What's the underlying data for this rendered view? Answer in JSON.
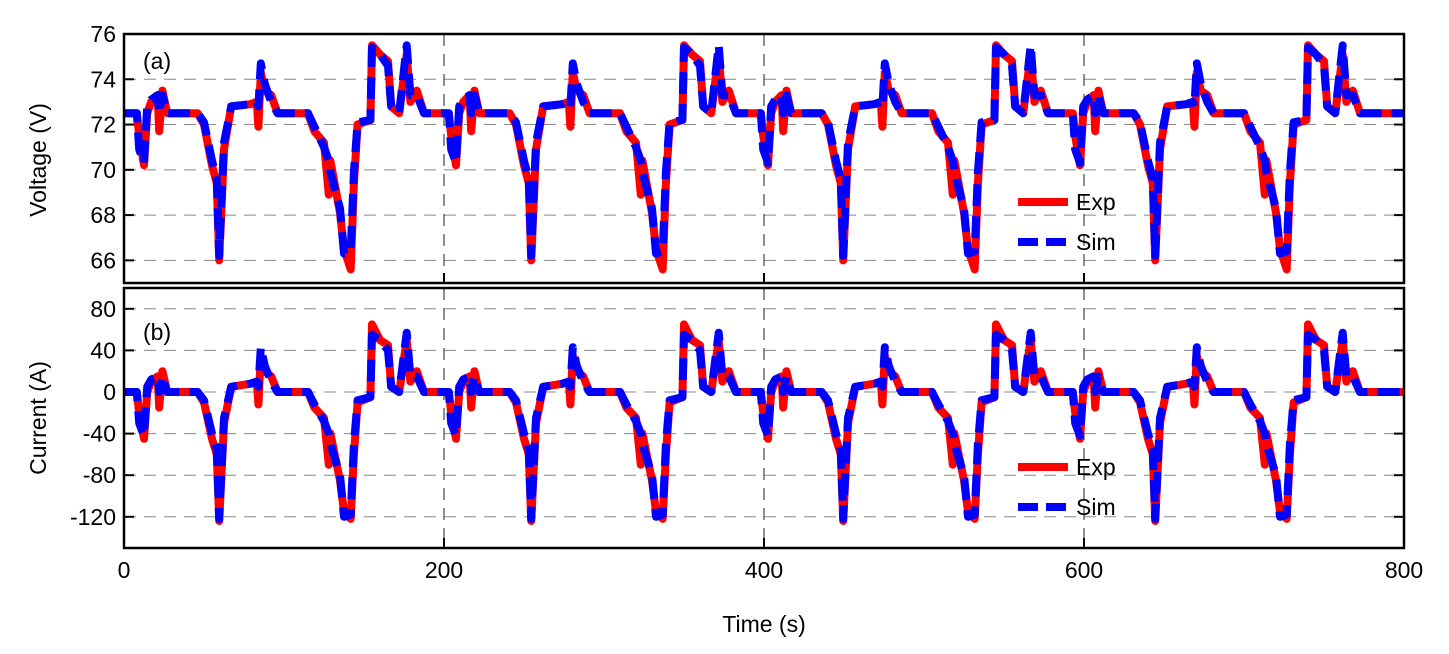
{
  "chart_data": [
    {
      "type": "line",
      "panel_label": "(a)",
      "xlabel": "",
      "ylabel": "Voltage (V)",
      "xlim": [
        0,
        800
      ],
      "ylim": [
        65,
        76
      ],
      "yticks": [
        66,
        68,
        70,
        72,
        74,
        76
      ],
      "grid": true,
      "legend": "bottom-right",
      "x": [
        0,
        8,
        9.5,
        12.5,
        14.5,
        17,
        21,
        22,
        24,
        27,
        46,
        50,
        55,
        58,
        59.5,
        62.5,
        67,
        79,
        83,
        84,
        85.5,
        88,
        92,
        96,
        115,
        119,
        125,
        128,
        129,
        135,
        137.5,
        141.7,
        143.7,
        146,
        154,
        155,
        160,
        165,
        167,
        172,
        176.7,
        179,
        183,
        187.5,
        195,
        203,
        204.5,
        207.5,
        209.5,
        212,
        216,
        217,
        219,
        222,
        241,
        245,
        250,
        253,
        254.5,
        257.5,
        262,
        274,
        278,
        279,
        280.5,
        283,
        287,
        291,
        310,
        314,
        320,
        323,
        324,
        330,
        332.5,
        336.7,
        338.7,
        341,
        349,
        350,
        355,
        360,
        362,
        367,
        371.7,
        374,
        378,
        382.5,
        390,
        398,
        399.5,
        402.5,
        404.5,
        407,
        411,
        412,
        414,
        417,
        436,
        440,
        445,
        448,
        449.5,
        452.5,
        457,
        469,
        473,
        474,
        475.5,
        478,
        482,
        486,
        505,
        509,
        515,
        518,
        519,
        525,
        527.5,
        531.7,
        533.7,
        536,
        544,
        545,
        550,
        555,
        557,
        562,
        566.7,
        569,
        573,
        577.5,
        585,
        593,
        594.5,
        597.5,
        599.5,
        602,
        606,
        607,
        609,
        612,
        631,
        635,
        640,
        643,
        644.5,
        647.5,
        652,
        664,
        668,
        669,
        670.5,
        673,
        677,
        681,
        700,
        704,
        710,
        713,
        714,
        720,
        722.5,
        726.7,
        728.7,
        731,
        739,
        740,
        745,
        750,
        752,
        757,
        761.7,
        764,
        768,
        772.5,
        800
      ],
      "series": [
        {
          "name": "Exp",
          "color": "#ff0000",
          "style": "solid",
          "values": [
            72.5,
            72.5,
            71.5,
            70.2,
            72.5,
            73.0,
            73.3,
            71.7,
            73.5,
            72.5,
            72.5,
            72.0,
            70.2,
            69.4,
            66.0,
            70.9,
            72.8,
            72.9,
            73.0,
            71.9,
            74.3,
            73.5,
            73.3,
            72.5,
            72.5,
            71.7,
            71.2,
            68.9,
            70.4,
            68.1,
            66.5,
            65.6,
            69.4,
            72.0,
            72.2,
            75.5,
            75.1,
            74.8,
            72.8,
            72.5,
            75.1,
            73.0,
            73.5,
            72.5,
            72.5,
            72.5,
            71.5,
            70.2,
            72.5,
            73.0,
            73.3,
            71.7,
            73.5,
            72.5,
            72.5,
            72.0,
            70.2,
            69.4,
            66.0,
            70.9,
            72.8,
            72.9,
            73.0,
            71.9,
            74.3,
            73.5,
            73.3,
            72.5,
            72.5,
            71.7,
            71.2,
            68.9,
            70.4,
            68.1,
            66.5,
            65.6,
            69.4,
            72.0,
            72.2,
            75.5,
            75.1,
            74.8,
            72.8,
            72.5,
            75.1,
            73.0,
            73.5,
            72.5,
            72.5,
            72.5,
            71.5,
            70.2,
            72.5,
            73.0,
            73.3,
            71.7,
            73.5,
            72.5,
            72.5,
            72.0,
            70.2,
            69.4,
            66.0,
            70.9,
            72.8,
            72.9,
            73.0,
            71.9,
            74.3,
            73.5,
            73.3,
            72.5,
            72.5,
            71.7,
            71.2,
            68.9,
            70.4,
            68.1,
            66.5,
            65.6,
            69.4,
            72.0,
            72.2,
            75.5,
            75.1,
            74.8,
            72.8,
            72.5,
            75.1,
            73.0,
            73.5,
            72.5,
            72.5,
            72.5,
            71.5,
            70.2,
            72.5,
            73.0,
            73.3,
            71.7,
            73.5,
            72.5,
            72.5,
            72.0,
            70.2,
            69.4,
            66.0,
            70.9,
            72.8,
            72.9,
            73.0,
            71.9,
            74.3,
            73.5,
            73.3,
            72.5,
            72.5,
            71.7,
            71.2,
            68.9,
            70.4,
            68.1,
            66.5,
            65.6,
            69.4,
            72.0,
            72.2,
            75.5,
            75.1,
            74.8,
            72.8,
            72.5,
            75.1,
            73.0,
            73.5,
            72.5,
            72.5
          ]
        },
        {
          "name": "Sim",
          "color": "#0000ff",
          "style": "dashed",
          "values": [
            72.5,
            72.5,
            70.9,
            70.3,
            72.8,
            73.1,
            73.3,
            72.5,
            73.3,
            72.5,
            72.5,
            72.1,
            70.4,
            69.6,
            66.2,
            71.2,
            72.8,
            72.9,
            73.0,
            72.8,
            74.7,
            73.8,
            73.0,
            72.5,
            72.5,
            71.9,
            71.0,
            70.4,
            69.9,
            68.3,
            66.3,
            66.4,
            69.9,
            72.1,
            72.2,
            75.4,
            75.1,
            74.6,
            72.8,
            72.5,
            75.5,
            73.3,
            73.3,
            72.5,
            72.5,
            72.5,
            70.9,
            70.3,
            72.8,
            73.1,
            73.3,
            72.5,
            73.3,
            72.5,
            72.5,
            72.1,
            70.4,
            69.6,
            66.2,
            71.2,
            72.8,
            72.9,
            73.0,
            72.8,
            74.7,
            73.8,
            73.0,
            72.5,
            72.5,
            71.9,
            71.0,
            70.4,
            69.9,
            68.3,
            66.3,
            66.4,
            69.9,
            72.1,
            72.2,
            75.4,
            75.1,
            74.6,
            72.8,
            72.5,
            75.5,
            73.3,
            73.3,
            72.5,
            72.5,
            72.5,
            70.9,
            70.3,
            72.8,
            73.1,
            73.3,
            72.5,
            73.3,
            72.5,
            72.5,
            72.1,
            70.4,
            69.6,
            66.2,
            71.2,
            72.8,
            72.9,
            73.0,
            72.8,
            74.7,
            73.8,
            73.0,
            72.5,
            72.5,
            71.9,
            71.0,
            70.4,
            69.9,
            68.3,
            66.3,
            66.4,
            69.9,
            72.1,
            72.2,
            75.4,
            75.1,
            74.6,
            72.8,
            72.5,
            75.5,
            73.3,
            73.3,
            72.5,
            72.5,
            72.5,
            70.9,
            70.3,
            72.8,
            73.1,
            73.3,
            72.5,
            73.3,
            72.5,
            72.5,
            72.1,
            70.4,
            69.6,
            66.2,
            71.2,
            72.8,
            72.9,
            73.0,
            72.8,
            74.7,
            73.8,
            73.0,
            72.5,
            72.5,
            71.9,
            71.0,
            70.4,
            69.9,
            68.3,
            66.3,
            66.4,
            69.9,
            72.1,
            72.2,
            75.4,
            75.1,
            74.6,
            72.8,
            72.5,
            75.5,
            73.3,
            73.3,
            72.5,
            72.5
          ]
        }
      ]
    },
    {
      "type": "line",
      "panel_label": "(b)",
      "xlabel": "Time (s)",
      "ylabel": "Current (A)",
      "xlim": [
        0,
        800
      ],
      "ylim": [
        -150,
        100
      ],
      "xticks": [
        0,
        200,
        400,
        600,
        800
      ],
      "yticks": [
        -120,
        -80,
        -40,
        0,
        40,
        80
      ],
      "grid": true,
      "legend": "bottom-right",
      "x_same_as_panel_a": true,
      "series": [
        {
          "name": "Exp",
          "color": "#ff0000",
          "style": "solid",
          "values": [
            0,
            0,
            -20,
            -45,
            0,
            10,
            15,
            -15,
            20,
            0,
            0,
            -10,
            -45,
            -60,
            -124,
            -30,
            5,
            8,
            10,
            -12,
            35,
            20,
            15,
            0,
            0,
            -15,
            -25,
            -70,
            -40,
            -85,
            -115,
            -122,
            -60,
            -10,
            -5,
            65,
            50,
            45,
            5,
            0,
            50,
            10,
            20,
            0,
            0,
            0,
            -20,
            -45,
            0,
            10,
            15,
            -15,
            20,
            0,
            0,
            -10,
            -45,
            -60,
            -124,
            -30,
            5,
            8,
            10,
            -12,
            35,
            20,
            15,
            0,
            0,
            -15,
            -25,
            -70,
            -40,
            -85,
            -115,
            -122,
            -60,
            -10,
            -5,
            65,
            50,
            45,
            5,
            0,
            50,
            10,
            20,
            0,
            0,
            0,
            -20,
            -45,
            0,
            10,
            15,
            -15,
            20,
            0,
            0,
            -10,
            -45,
            -60,
            -124,
            -30,
            5,
            8,
            10,
            -12,
            35,
            20,
            15,
            0,
            0,
            -15,
            -25,
            -70,
            -40,
            -85,
            -115,
            -122,
            -60,
            -10,
            -5,
            65,
            50,
            45,
            5,
            0,
            50,
            10,
            20,
            0,
            0,
            0,
            -20,
            -45,
            0,
            10,
            15,
            -15,
            20,
            0,
            0,
            -10,
            -45,
            -60,
            -124,
            -30,
            5,
            8,
            10,
            -12,
            35,
            20,
            15,
            0,
            0,
            -15,
            -25,
            -70,
            -40,
            -85,
            -115,
            -122,
            -60,
            -10,
            -5,
            65,
            50,
            45,
            5,
            0,
            50,
            10,
            20,
            0,
            0
          ]
        },
        {
          "name": "Sim",
          "color": "#0000ff",
          "style": "dashed",
          "values": [
            0,
            0,
            -30,
            -42,
            5,
            12,
            15,
            0,
            15,
            0,
            0,
            -8,
            -40,
            -55,
            -122,
            -25,
            5,
            8,
            10,
            5,
            43,
            25,
            10,
            0,
            0,
            -12,
            -28,
            -40,
            -50,
            -80,
            -120,
            -118,
            -50,
            -8,
            -5,
            55,
            50,
            40,
            5,
            0,
            57,
            15,
            15,
            0,
            0,
            0,
            -30,
            -42,
            5,
            12,
            15,
            0,
            15,
            0,
            0,
            -8,
            -40,
            -55,
            -122,
            -25,
            5,
            8,
            10,
            5,
            43,
            25,
            10,
            0,
            0,
            -12,
            -28,
            -40,
            -50,
            -80,
            -120,
            -118,
            -50,
            -8,
            -5,
            55,
            50,
            40,
            5,
            0,
            57,
            15,
            15,
            0,
            0,
            0,
            -30,
            -42,
            5,
            12,
            15,
            0,
            15,
            0,
            0,
            -8,
            -40,
            -55,
            -122,
            -25,
            5,
            8,
            10,
            5,
            43,
            25,
            10,
            0,
            0,
            -12,
            -28,
            -40,
            -50,
            -80,
            -120,
            -118,
            -50,
            -8,
            -5,
            55,
            50,
            40,
            5,
            0,
            57,
            15,
            15,
            0,
            0,
            0,
            -30,
            -42,
            5,
            12,
            15,
            0,
            15,
            0,
            0,
            -8,
            -40,
            -55,
            -122,
            -25,
            5,
            8,
            10,
            5,
            43,
            25,
            10,
            0,
            0,
            -12,
            -28,
            -40,
            -50,
            -80,
            -120,
            -118,
            -50,
            -8,
            -5,
            55,
            50,
            40,
            5,
            0,
            57,
            15,
            15,
            0,
            0
          ]
        }
      ]
    }
  ]
}
